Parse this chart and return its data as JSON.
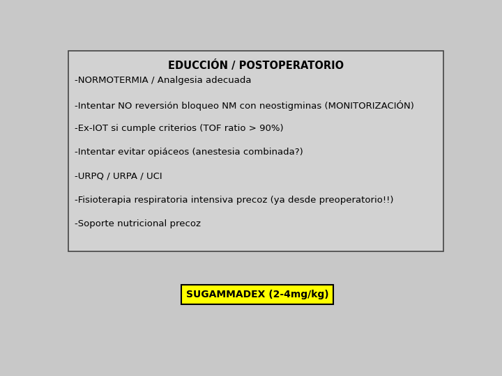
{
  "title": "EDUCCIÓN / POSTOPERATORIO",
  "bg_color": "#c8c8c8",
  "box_color": "#d0d0d0",
  "box_border_color": "#444444",
  "outer_bg": "#c0c0c0",
  "bullet_lines": [
    "-NORMOTERMIA / Analgesia adecuada",
    "-Intentar NO reversión bloqueo NM con neostigminas (MONITORIZACIÓN)",
    "-Ex-IOT si cumple criterios (TOF ratio > 90%)",
    "-Intentar evitar opiáceos (anestesia combinada?)",
    "-URPQ / URPA / UCI",
    "-Fisioterapia respiratoria intensiva precoz (ya desde preoperatorio!!)",
    "-Soporte nutricional precoz"
  ],
  "badge_text": "SUGAMMADEX (2-4mg/kg)",
  "badge_bg": "#ffff00",
  "badge_border": "#000000",
  "title_fontsize": 10.5,
  "body_fontsize": 9.5,
  "badge_fontsize": 10
}
